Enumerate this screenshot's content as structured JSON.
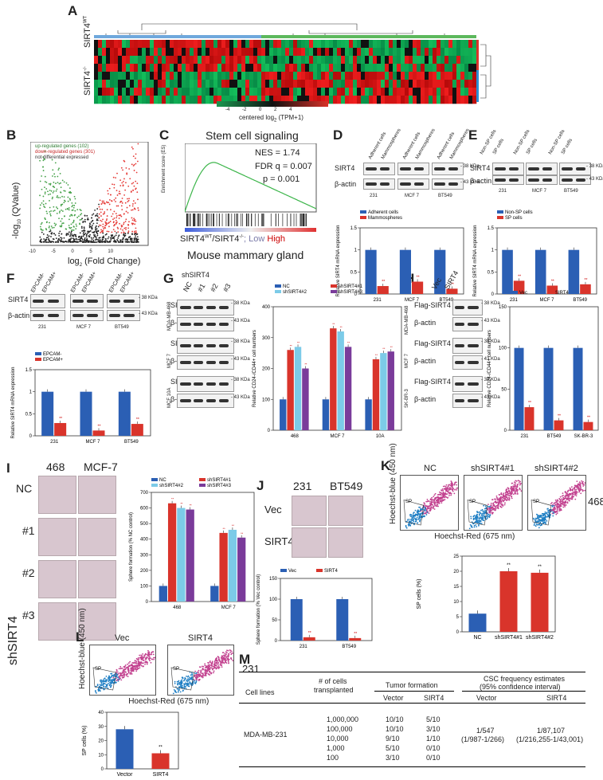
{
  "panels": {
    "A": "A",
    "B": "B",
    "C": "C",
    "D": "D",
    "E": "E",
    "F": "F",
    "G": "G",
    "H": "H",
    "I": "I",
    "J": "J",
    "K": "K",
    "L": "L",
    "M": "M"
  },
  "heatmap": {
    "row_label_wt": "SIRT4",
    "row_label_wt_sup": "WT",
    "row_label_ko": "SIRT4",
    "row_label_ko_sup": "-/-",
    "scale_ticks": [
      "-4",
      "-2",
      "0",
      "2",
      "4"
    ],
    "scale_label": "centered log",
    "scale_label_sub": "2",
    "scale_label_end": " (TPM+1)"
  },
  "volcano": {
    "legend": [
      "up-regulated genes (102)",
      "down-regulated genes (301)",
      "not differential expressed"
    ],
    "xlabel": "log",
    "xlabel_sub": "2",
    "xlabel_end": " (Fold Change)",
    "ylabel": "-log",
    "ylabel_sub": "10",
    "ylabel_end": " (QValue)",
    "xticks": [
      "-10",
      "-5",
      "0",
      "5",
      "10"
    ],
    "yticks": [
      "0",
      "10",
      "20",
      "30"
    ]
  },
  "gsea": {
    "title": "Stem cell signaling",
    "nes": "NES = 1.74",
    "fdr": "FDR q = 0.007",
    "p": "p = 0.001",
    "ylabel": "Enrichment score (ES)",
    "yticks": [
      "0.00",
      "-0.05",
      "-0.10",
      "-0.15",
      "-0.20",
      "-0.25",
      "-0.30",
      "-0.35",
      "-0.40",
      "-0.45"
    ],
    "axis": "SIRT4",
    "axis_sup_wt": "WT",
    "axis_mid": "/SIRT4",
    "axis_sup_ko": "-/-",
    "axis_low": "; Low",
    "axis_high": "High",
    "subtitle": "Mouse mammary gland"
  },
  "chart_data": [
    {
      "id": "D",
      "type": "bar",
      "title": "",
      "ylabel": "Relative SIRT4 mRNA expression",
      "categories": [
        "231",
        "MCF 7",
        "BT549"
      ],
      "series": [
        {
          "name": "Adherent cells",
          "values": [
            1.0,
            1.0,
            1.0
          ],
          "color": "#2b5fb4"
        },
        {
          "name": "Mammospheres",
          "values": [
            0.18,
            0.28,
            0.12
          ],
          "color": "#d9342b"
        }
      ],
      "ylim": [
        0,
        1.5
      ],
      "yticks": [
        "0",
        "0.5",
        "1",
        "1.5"
      ],
      "sig": [
        "**",
        "**",
        "**"
      ]
    },
    {
      "id": "E",
      "type": "bar",
      "ylabel": "Relative SIRT4 mRNA expression",
      "categories": [
        "231",
        "MCF 7",
        "BT549"
      ],
      "series": [
        {
          "name": "Non-SP cells",
          "values": [
            1.0,
            1.0,
            1.0
          ],
          "color": "#2b5fb4"
        },
        {
          "name": "SP cells",
          "values": [
            0.3,
            0.19,
            0.22
          ],
          "color": "#d9342b"
        }
      ],
      "ylim": [
        0,
        1.5
      ],
      "yticks": [
        "0",
        "0.5",
        "1",
        "1.5"
      ],
      "sig": [
        "**",
        "**",
        "**"
      ]
    },
    {
      "id": "F",
      "type": "bar",
      "ylabel": "Relative SIRT4 mRNA expression",
      "categories": [
        "231",
        "MCF 7",
        "BT549"
      ],
      "series": [
        {
          "name": "EPCAM-",
          "values": [
            1.0,
            1.0,
            1.0
          ],
          "color": "#2b5fb4"
        },
        {
          "name": "EPCAM+",
          "values": [
            0.29,
            0.12,
            0.27
          ],
          "color": "#d9342b"
        }
      ],
      "ylim": [
        0,
        1.5
      ],
      "yticks": [
        "0",
        "0.5",
        "1",
        "1.5"
      ],
      "sig": [
        "**",
        "**",
        "**"
      ]
    },
    {
      "id": "G",
      "type": "bar",
      "ylabel": "Relative CD24-/CD44+ cell numbers",
      "categories": [
        "468",
        "MCF 7",
        "10A"
      ],
      "series": [
        {
          "name": "NC",
          "values": [
            100,
            100,
            100
          ],
          "color": "#2b5fb4"
        },
        {
          "name": "shSIRT4#1",
          "values": [
            260,
            330,
            230
          ],
          "color": "#d9342b"
        },
        {
          "name": "shSIRT4#2",
          "values": [
            270,
            320,
            250
          ],
          "color": "#7ccbe8"
        },
        {
          "name": "shSIRT4#3",
          "values": [
            200,
            270,
            255
          ],
          "color": "#7a3b9a"
        }
      ],
      "ylim": [
        0,
        400
      ],
      "yticks": [
        "0",
        "100",
        "200",
        "300",
        "400"
      ]
    },
    {
      "id": "H",
      "type": "bar",
      "ylabel": "Relative CD24-/CD44+ cell numbers",
      "categories": [
        "231",
        "BT549",
        "SK-BR-3"
      ],
      "series": [
        {
          "name": "Vec",
          "values": [
            100,
            100,
            100
          ],
          "color": "#2b5fb4"
        },
        {
          "name": "SIRT4",
          "values": [
            28,
            12,
            10
          ],
          "color": "#d9342b"
        }
      ],
      "ylim": [
        0,
        150
      ],
      "yticks": [
        "0",
        "50",
        "100",
        "150"
      ],
      "sig": [
        "**",
        "**",
        "**"
      ]
    },
    {
      "id": "I",
      "type": "bar",
      "ylabel": "Sphere formation (% NC control)",
      "categories": [
        "468",
        "MCF 7"
      ],
      "series": [
        {
          "name": "NC",
          "values": [
            100,
            100
          ],
          "color": "#2b5fb4"
        },
        {
          "name": "shSIRT4#1",
          "values": [
            630,
            440
          ],
          "color": "#d9342b"
        },
        {
          "name": "shSIRT4#2",
          "values": [
            600,
            460
          ],
          "color": "#7ccbe8"
        },
        {
          "name": "shSIRT4#3",
          "values": [
            590,
            410
          ],
          "color": "#7a3b9a"
        }
      ],
      "ylim": [
        0,
        700
      ],
      "yticks": [
        "0",
        "100",
        "200",
        "300",
        "400",
        "500",
        "600",
        "700"
      ]
    },
    {
      "id": "J",
      "type": "bar",
      "ylabel": "Sphere formation (% Vec control)",
      "categories": [
        "231",
        "BT549"
      ],
      "series": [
        {
          "name": "Vec",
          "values": [
            100,
            100
          ],
          "color": "#2b5fb4"
        },
        {
          "name": "SIRT4",
          "values": [
            8,
            6
          ],
          "color": "#d9342b"
        }
      ],
      "ylim": [
        0,
        150
      ],
      "yticks": [
        "0",
        "50",
        "100",
        "150"
      ],
      "sig": [
        "**",
        "**"
      ]
    },
    {
      "id": "K",
      "type": "bar",
      "ylabel": "SP cells (%)",
      "categories": [
        "NC",
        "shSIRT4#1",
        "shSIRT4#2"
      ],
      "values": [
        6,
        20,
        19.5
      ],
      "colors": [
        "#2b5fb4",
        "#d9342b",
        "#d9342b"
      ],
      "ylim": [
        0,
        25
      ],
      "yticks": [
        "0",
        "5",
        "10",
        "15",
        "20",
        "25"
      ],
      "sig": [
        "",
        "**",
        "**"
      ]
    },
    {
      "id": "L",
      "type": "bar",
      "ylabel": "SP cells (%)",
      "categories": [
        "Vector",
        "SIRT4"
      ],
      "values": [
        28,
        11
      ],
      "colors": [
        "#2b5fb4",
        "#d9342b"
      ],
      "ylim": [
        0,
        40
      ],
      "yticks": [
        "0",
        "10",
        "20",
        "30",
        "40"
      ],
      "sig": [
        "",
        "**"
      ]
    }
  ],
  "blots": {
    "D": {
      "lanes": [
        "Adherent cells",
        "Mammospheres",
        "Adherent cells",
        "Mammospheres",
        "Adherent cells",
        "Mammospheres"
      ],
      "rows": [
        "SIRT4",
        "β-actin"
      ],
      "kda": [
        "38 KDa",
        "43 KDa"
      ],
      "cells": [
        "231",
        "MCF 7",
        "BT549"
      ]
    },
    "E": {
      "lanes": [
        "Non-SP cells",
        "SP cells",
        "Non-SP cells",
        "SP cells",
        "Non-SP cells",
        "SP cells"
      ],
      "rows": [
        "SIRT4",
        "β-actin"
      ],
      "kda": [
        "38 KDa",
        "43 KDa"
      ],
      "cells": [
        "231",
        "MCF 7",
        "BT549"
      ]
    },
    "F": {
      "lanes": [
        "EPCAM-",
        "EPCAM+",
        "EPCAM-",
        "EPCAM+",
        "EPCAM-",
        "EPCAM+"
      ],
      "rows": [
        "SIRT4",
        "β-actin"
      ],
      "kda": [
        "38 KDa",
        "43 KDa"
      ],
      "cells": [
        "231",
        "MCF 7",
        "BT549"
      ]
    },
    "G": {
      "header": "shSIRT4",
      "lanes": [
        "NC",
        "#1",
        "#2",
        "#3"
      ],
      "rows": [
        "SIRT4",
        "β-actin",
        "SIRT4",
        "β-actin",
        "SIRT4",
        "β-actin"
      ],
      "kda": [
        "38 KDa",
        "43 KDa",
        "38 KDa",
        "43 KDa",
        "38 KDa",
        "43 KDa"
      ],
      "cells": [
        "MDA-MB-468",
        "MCF 7",
        "MCF 10A"
      ]
    },
    "H": {
      "lanes": [
        "Vec",
        "SIRT4"
      ],
      "rows": [
        "Flag-SIRT4",
        "β-actin",
        "Flag-SIRT4",
        "β-actin",
        "Flag-SIRT4",
        "β-actin"
      ],
      "kda": [
        "38 KDa",
        "43 KDa",
        "38 KDa",
        "43 KDa",
        "38 KDa",
        "43 KDa"
      ],
      "cells": [
        "MDA-MB-468",
        "MCF 7",
        "SK-BR-3"
      ]
    }
  },
  "photos_I": {
    "cols": [
      "468",
      "MCF-7"
    ],
    "rows": [
      "NC",
      "#1",
      "#2",
      "#3"
    ],
    "group": "shSIRT4"
  },
  "photos_J": {
    "cols": [
      "231",
      "BT549"
    ],
    "rows": [
      "Vec",
      "SIRT4"
    ]
  },
  "flow_K": {
    "titles": [
      "NC",
      "shSIRT4#1",
      "shSIRT4#2"
    ],
    "side": "468",
    "xlabel": "Hoechst-Red (675 nm)",
    "ylabel": "Hoechst-blue (450 nm)",
    "gate": "SP"
  },
  "flow_L": {
    "titles": [
      "Vec",
      "SIRT4"
    ],
    "side": "231",
    "xlabel": "Hoechst-Red (675 nm)",
    "ylabel": "Hoechst-blue (450 nm)",
    "gate": "SP"
  },
  "table_M": {
    "h_cell": "Cell lines",
    "h_num": "# of cells",
    "h_num2": "transplanted",
    "h_tumor": "Tumor formation",
    "h_csc": "CSC frequency estimates",
    "h_csc2": "(95% confidence interval)",
    "sub_vec": "Vector",
    "sub_sirt": "SIRT4",
    "sub_vec2": "Vector",
    "sub_sirt2": "SIRT4",
    "cell_line": "MDA-MB-231",
    "rows": [
      {
        "n": "1,000,000",
        "v": "10/10",
        "s": "5/10"
      },
      {
        "n": "100,000",
        "v": "10/10",
        "s": "3/10"
      },
      {
        "n": "10,000",
        "v": "9/10",
        "s": "1/10"
      },
      {
        "n": "1,000",
        "v": "5/10",
        "s": "0/10"
      },
      {
        "n": "100",
        "v": "3/10",
        "s": "0/10"
      }
    ],
    "csc_vec": "1/547",
    "csc_vec_ci": "(1/987-1/266)",
    "csc_sirt": "1/87,107",
    "csc_sirt_ci": "(1/216,255-1/43,001)"
  }
}
